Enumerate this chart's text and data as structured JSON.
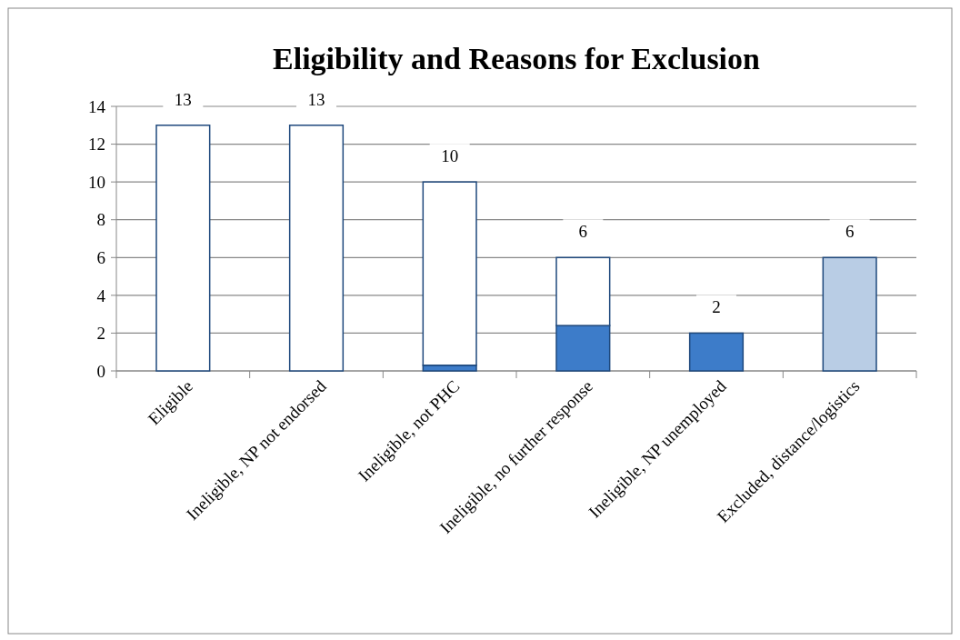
{
  "chart_data": {
    "type": "bar",
    "title": "Eligibility and Reasons for Exclusion",
    "categories": [
      "Eligible",
      "Ineligible, NP not endorsed",
      "Ineligible, not PHC",
      "Ineligible, no further response",
      "Ineligible, NP unemployed",
      "Excluded, distance/logistics"
    ],
    "stacked": true,
    "series": [
      {
        "color": "#3d7cc9",
        "values": [
          0,
          0,
          0.3,
          2.4,
          2,
          0
        ]
      },
      {
        "color": "#ffffff",
        "values": [
          13,
          13,
          9.7,
          3.6,
          0,
          0
        ]
      },
      {
        "color": "#b9cde5",
        "values": [
          0,
          0,
          0,
          0,
          0,
          6
        ]
      }
    ],
    "totals": [
      "13",
      "13",
      "10",
      "6",
      "2",
      "6"
    ],
    "ylim": [
      0,
      14
    ],
    "yticks": [
      0,
      2,
      4,
      6,
      8,
      10,
      12,
      14
    ],
    "grid": "y"
  }
}
